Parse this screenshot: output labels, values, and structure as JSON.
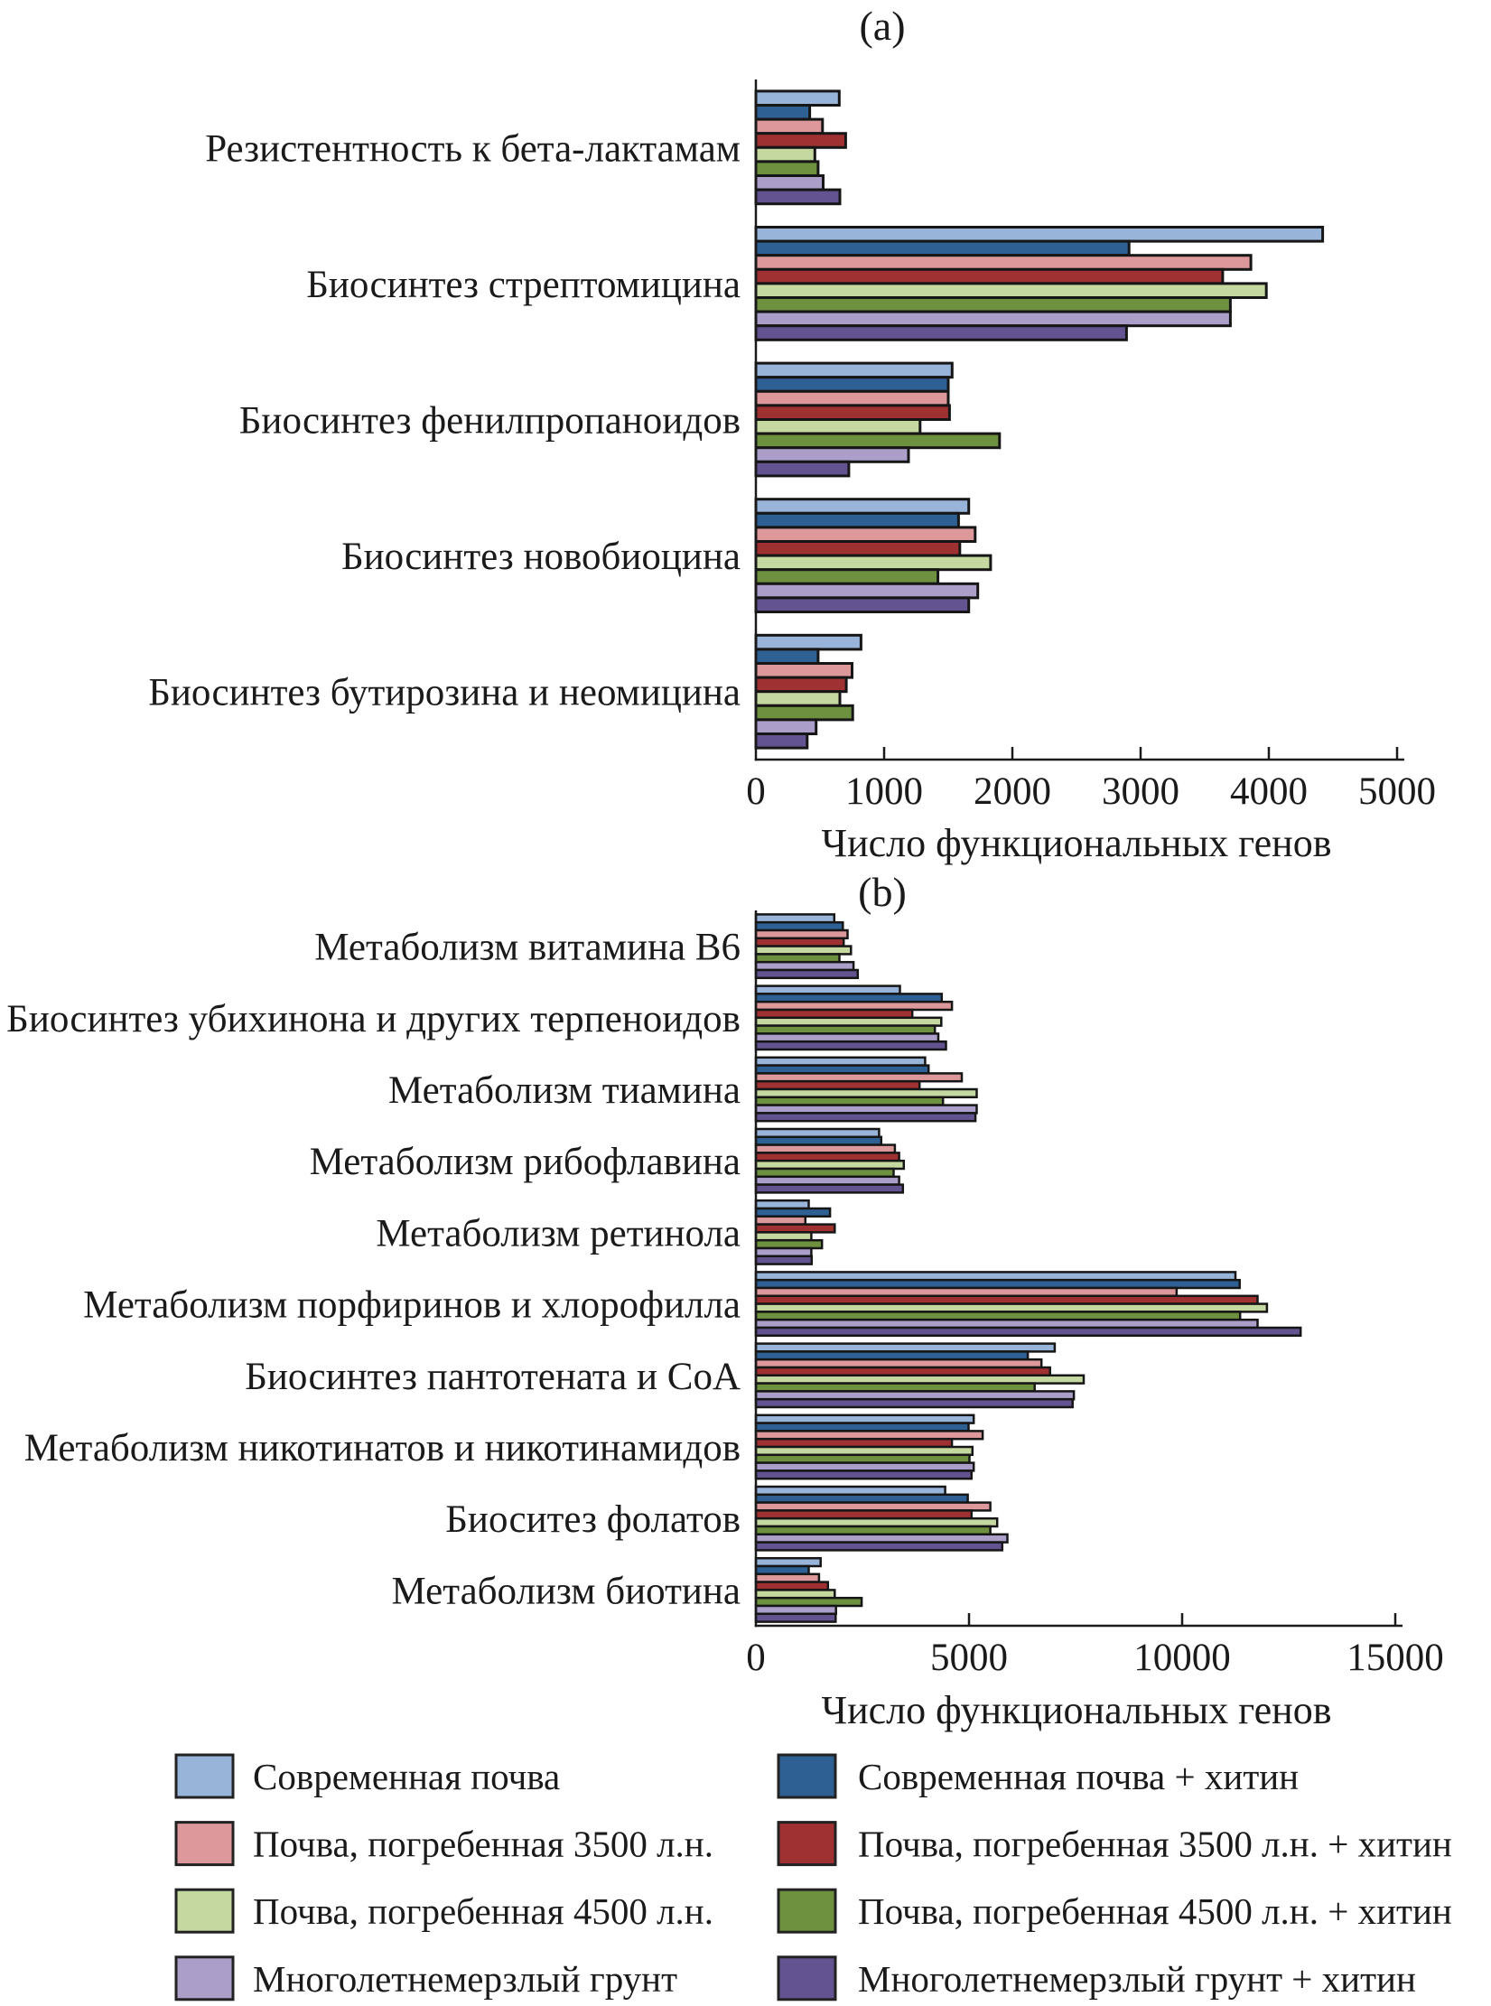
{
  "chart_data": [
    {
      "type": "bar",
      "orientation": "horizontal",
      "panel_label": "(a)",
      "xlabel": "Число функциональных генов",
      "xlim": [
        0,
        5000
      ],
      "xticks": [
        0,
        1000,
        2000,
        3000,
        4000,
        5000
      ],
      "categories": [
        "Резистентность к бета-лактамам",
        "Биосинтез стрептомицина",
        "Биосинтез фенилпропаноидов",
        "Биосинтез новобиоцина",
        "Биосинтез бутирозина и неомицина"
      ],
      "series": [
        {
          "name": "Современная почва",
          "color": "#98b4d9",
          "values": [
            650,
            4420,
            1530,
            1660,
            820
          ]
        },
        {
          "name": "Современная почва + хитин",
          "color": "#2f6094",
          "values": [
            420,
            2910,
            1500,
            1580,
            485
          ]
        },
        {
          "name": "Почва, погребенная 3500 л.н.",
          "color": "#dc989a",
          "values": [
            520,
            3860,
            1500,
            1710,
            750
          ]
        },
        {
          "name": "Почва, погребенная 3500 л.н. + хитин",
          "color": "#a03133",
          "values": [
            700,
            3640,
            1510,
            1590,
            705
          ]
        },
        {
          "name": "Почва, погребенная 4500 л.н.",
          "color": "#c5d8a0",
          "values": [
            460,
            3980,
            1280,
            1830,
            655
          ]
        },
        {
          "name": "Почва, погребенная 4500 л.н. + хитин",
          "color": "#6e9140",
          "values": [
            485,
            3700,
            1900,
            1420,
            755
          ]
        },
        {
          "name": "Многолетнемерзлый грунт",
          "color": "#ab9fca",
          "values": [
            525,
            3700,
            1190,
            1730,
            470
          ]
        },
        {
          "name": "Многолетнемерзлый грунт + хитин",
          "color": "#635390",
          "values": [
            655,
            2890,
            725,
            1660,
            400
          ]
        }
      ]
    },
    {
      "type": "bar",
      "orientation": "horizontal",
      "panel_label": "(b)",
      "xlabel": "Число функциональных генов",
      "xlim": [
        0,
        15000
      ],
      "xticks": [
        0,
        5000,
        10000,
        15000
      ],
      "categories": [
        "Метаболизм витамина B6",
        "Биосинтез убихинона и других терпеноидов",
        "Метаболизм тиамина",
        "Метаболизм рибофлавина",
        "Метаболизм ретинола",
        "Метаболизм порфиринов и хлорофилла",
        "Биосинтез пантотената и CoA",
        "Метаболизм никотинатов и никотинамидов",
        "Биоситез фолатов",
        "Метаболизм биотина"
      ],
      "series": [
        {
          "name": "Современная почва",
          "color": "#98b4d9",
          "values": [
            1840,
            3380,
            3970,
            2890,
            1240,
            11250,
            7010,
            5110,
            4440,
            1520
          ]
        },
        {
          "name": "Современная почва + хитин",
          "color": "#2f6094",
          "values": [
            2040,
            4360,
            4050,
            2940,
            1740,
            11350,
            6380,
            4990,
            4970,
            1240
          ]
        },
        {
          "name": "Почва, погребенная 3500 л.н.",
          "color": "#dc989a",
          "values": [
            2150,
            4600,
            4830,
            3260,
            1160,
            9870,
            6700,
            5320,
            5500,
            1480
          ]
        },
        {
          "name": "Почва, погребенная 3500 л.н. + хитин",
          "color": "#a03133",
          "values": [
            2060,
            3670,
            3840,
            3360,
            1850,
            11770,
            6900,
            4600,
            5060,
            1690
          ]
        },
        {
          "name": "Почва, погребенная 4500 л.н.",
          "color": "#c5d8a0",
          "values": [
            2230,
            4350,
            5180,
            3470,
            1300,
            11990,
            7690,
            5080,
            5660,
            1850
          ]
        },
        {
          "name": "Почва, погребенная 4500 л.н. + хитин",
          "color": "#6e9140",
          "values": [
            1960,
            4200,
            4390,
            3230,
            1550,
            11360,
            6540,
            5010,
            5500,
            2480
          ]
        },
        {
          "name": "Многолетнемерзлый грунт",
          "color": "#ab9fca",
          "values": [
            2290,
            4280,
            5180,
            3360,
            1300,
            11770,
            7460,
            5110,
            5900,
            1880
          ]
        },
        {
          "name": "Многолетнемерзлый грунт + хитин",
          "color": "#635390",
          "values": [
            2390,
            4460,
            5150,
            3450,
            1310,
            12780,
            7430,
            5060,
            5780,
            1870
          ]
        }
      ]
    }
  ],
  "legend": {
    "columns": [
      {
        "items": [
          {
            "label": "Современная почва",
            "color": "#98b4d9"
          },
          {
            "label": "Почва, погребенная 3500 л.н.",
            "color": "#dc989a"
          },
          {
            "label": "Почва, погребенная 4500 л.н.",
            "color": "#c5d8a0"
          },
          {
            "label": "Многолетнемерзлый грунт",
            "color": "#ab9fca"
          }
        ]
      },
      {
        "items": [
          {
            "label": "Современная почва + хитин",
            "color": "#2f6094"
          },
          {
            "label": "Почва, погребенная 3500 л.н. + хитин",
            "color": "#a03133"
          },
          {
            "label": "Почва, погребенная 4500 л.н. + хитин",
            "color": "#6e9140"
          },
          {
            "label": "Многолетнемерзлый грунт + хитин",
            "color": "#635390"
          }
        ]
      }
    ]
  }
}
